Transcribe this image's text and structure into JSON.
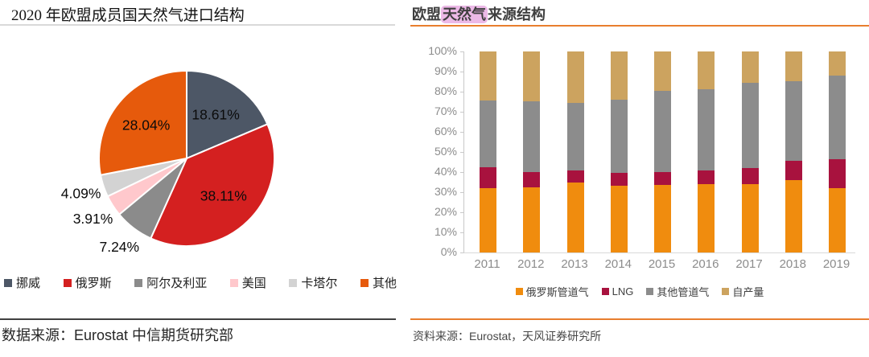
{
  "left_panel": {
    "title": "2020 年欧盟成员国天然气进口结构",
    "source": "数据来源：Eurostat 中信期货研究部"
  },
  "right_panel": {
    "title_prefix": "欧盟",
    "title_highlight": "天然气",
    "title_suffix": "来源结构",
    "source": "资料来源：Eurostat，天风证券研究所"
  },
  "colors": {
    "accent_orange_rule": "#E87E2E",
    "title_highlight_bg": "#ECB9E7",
    "axis_gray": "#C9C9C9",
    "axis_label_gray": "#8C8C8C",
    "divider_gray": "#D9D9D9",
    "divider_dark": "#404040",
    "text_dark": "#1F1F1F",
    "title_text": "#3F3F3F"
  },
  "chart_data": [
    {
      "type": "pie",
      "title": "2020 年欧盟成员国天然气进口结构",
      "start_angle_deg": 0,
      "direction": "clockwise",
      "legend_position": "bottom",
      "slices": [
        {
          "label": "挪威",
          "value": 18.61,
          "display": "18.61%",
          "color": "#4D5766",
          "label_inside": true
        },
        {
          "label": "俄罗斯",
          "value": 38.11,
          "display": "38.11%",
          "color": "#D42020",
          "label_inside": true
        },
        {
          "label": "阿尔及利亚",
          "value": 7.24,
          "display": "7.24%",
          "color": "#8B8B8B",
          "label_inside": false
        },
        {
          "label": "美国",
          "value": 3.91,
          "display": "3.91%",
          "color": "#FFC8CC",
          "label_inside": false
        },
        {
          "label": "卡塔尔",
          "value": 4.09,
          "display": "4.09%",
          "color": "#D3D3D3",
          "label_inside": false
        },
        {
          "label": "其他",
          "value": 28.04,
          "display": "28.04%",
          "color": "#E65A0C",
          "label_inside": true
        }
      ]
    },
    {
      "type": "stacked-bar",
      "title": "欧盟天然气来源结构",
      "unit": "%",
      "ylim": [
        0,
        100
      ],
      "yticks": [
        "0%",
        "10%",
        "20%",
        "30%",
        "40%",
        "50%",
        "60%",
        "70%",
        "80%",
        "90%",
        "100%"
      ],
      "grid": false,
      "legend_position": "bottom",
      "categories": [
        "2011",
        "2012",
        "2013",
        "2014",
        "2015",
        "2016",
        "2017",
        "2018",
        "2019"
      ],
      "series": [
        {
          "name": "俄罗斯管道气",
          "color": "#F08C0E",
          "values": [
            32.2,
            32.3,
            34.7,
            33.1,
            33.6,
            34.2,
            33.9,
            36.0,
            32.0
          ]
        },
        {
          "name": "LNG",
          "color": "#A8123E",
          "values": [
            10.3,
            7.7,
            6.0,
            6.4,
            6.6,
            6.7,
            8.2,
            9.5,
            14.3
          ]
        },
        {
          "name": "其他管道气",
          "color": "#8C8C8C",
          "values": [
            33.0,
            35.2,
            33.9,
            36.5,
            40.3,
            40.3,
            42.3,
            39.6,
            41.8
          ]
        },
        {
          "name": "自产量",
          "color": "#CCA35F",
          "values": [
            24.5,
            24.8,
            25.4,
            24.0,
            19.5,
            18.8,
            15.6,
            14.9,
            11.9
          ]
        }
      ]
    }
  ]
}
